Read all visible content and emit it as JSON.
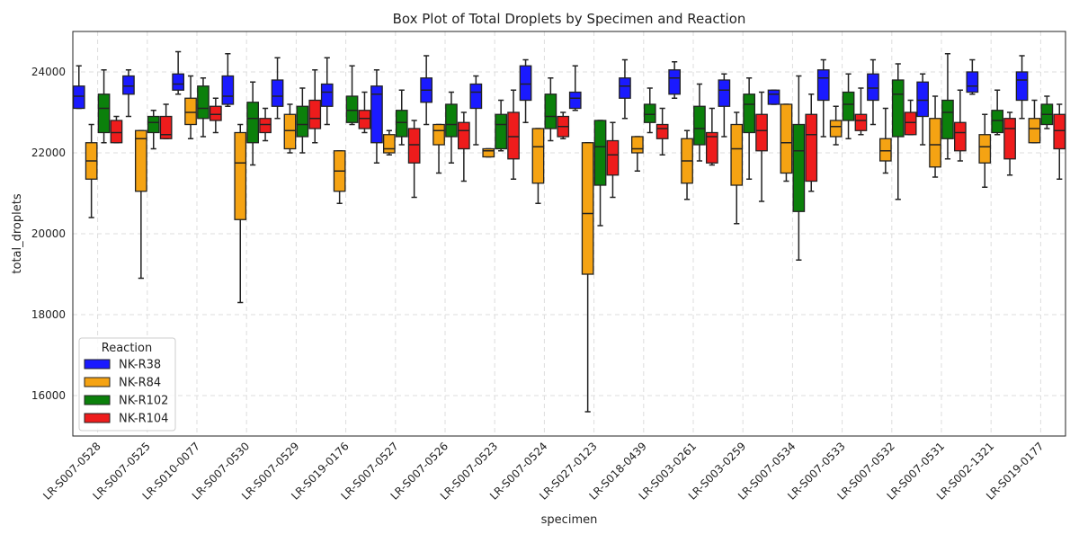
{
  "chart_data": {
    "type": "box",
    "title": "Box Plot of Total Droplets by Specimen and Reaction",
    "xlabel": "specimen",
    "ylabel": "total_droplets",
    "ylim": [
      15000,
      25000
    ],
    "yticks": [
      16000,
      18000,
      20000,
      22000,
      24000
    ],
    "grid": true,
    "legend": {
      "title": "Reaction",
      "position": "lower-left"
    },
    "categories": [
      "LR-S007-0528",
      "LR-S007-0525",
      "LR-S010-0077",
      "LR-S007-0530",
      "LR-S007-0529",
      "LR-S019-0176",
      "LR-S007-0527",
      "LR-S007-0526",
      "LR-S007-0523",
      "LR-S007-0524",
      "LR-S027-0123",
      "LR-S018-0439",
      "LR-S003-0261",
      "LR-S003-0259",
      "LR-S007-0534",
      "LR-S007-0533",
      "LR-S007-0532",
      "LR-S007-0531",
      "LR-S002-1321",
      "LR-S019-0177"
    ],
    "series": [
      {
        "name": "NK-R38",
        "color": "#1a1aff",
        "boxes": [
          {
            "whislo": 23100,
            "q1": 23100,
            "med": 23400,
            "q3": 23650,
            "whishi": 24150
          },
          {
            "whislo": 22900,
            "q1": 23450,
            "med": 23650,
            "q3": 23900,
            "whishi": 24050
          },
          {
            "whislo": 23450,
            "q1": 23550,
            "med": 23700,
            "q3": 23950,
            "whishi": 24500
          },
          {
            "whislo": 23150,
            "q1": 23200,
            "med": 23400,
            "q3": 23900,
            "whishi": 24450
          },
          {
            "whislo": 22850,
            "q1": 23150,
            "med": 23400,
            "q3": 23800,
            "whishi": 24350
          },
          {
            "whislo": 22700,
            "q1": 23150,
            "med": 23500,
            "q3": 23700,
            "whishi": 24350
          },
          {
            "whislo": 21750,
            "q1": 22250,
            "med": 23450,
            "q3": 23650,
            "whishi": 24050
          },
          {
            "whislo": 22700,
            "q1": 23250,
            "med": 23550,
            "q3": 23850,
            "whishi": 24400
          },
          {
            "whislo": 22200,
            "q1": 23100,
            "med": 23500,
            "q3": 23700,
            "whishi": 23900
          },
          {
            "whislo": 22750,
            "q1": 23300,
            "med": 23700,
            "q3": 24150,
            "whishi": 24300
          },
          {
            "whislo": 23050,
            "q1": 23100,
            "med": 23350,
            "q3": 23500,
            "whishi": 24150
          },
          {
            "whislo": 22850,
            "q1": 23350,
            "med": 23650,
            "q3": 23850,
            "whishi": 24300
          },
          {
            "whislo": 23350,
            "q1": 23450,
            "med": 23850,
            "q3": 24050,
            "whishi": 24250
          },
          {
            "whislo": 22400,
            "q1": 23150,
            "med": 23550,
            "q3": 23800,
            "whishi": 23950
          },
          {
            "whislo": 23200,
            "q1": 23200,
            "med": 23450,
            "q3": 23550,
            "whishi": 23550
          },
          {
            "whislo": 22400,
            "q1": 23300,
            "med": 23850,
            "q3": 24050,
            "whishi": 24300
          },
          {
            "whislo": 22700,
            "q1": 23300,
            "med": 23600,
            "q3": 23950,
            "whishi": 24300
          },
          {
            "whislo": 22200,
            "q1": 22900,
            "med": 23300,
            "q3": 23750,
            "whishi": 23950
          },
          {
            "whislo": 23450,
            "q1": 23500,
            "med": 23650,
            "q3": 24000,
            "whishi": 24300
          },
          {
            "whislo": 22850,
            "q1": 23300,
            "med": 23800,
            "q3": 24000,
            "whishi": 24400
          }
        ]
      },
      {
        "name": "NK-R84",
        "color": "#f5a313",
        "boxes": [
          {
            "whislo": 20400,
            "q1": 21350,
            "med": 21800,
            "q3": 22250,
            "whishi": 22700
          },
          {
            "whislo": 18900,
            "q1": 21050,
            "med": 22350,
            "q3": 22550,
            "whishi": 22550
          },
          {
            "whislo": 22350,
            "q1": 22700,
            "med": 23000,
            "q3": 23350,
            "whishi": 23900
          },
          {
            "whislo": 18300,
            "q1": 20350,
            "med": 21750,
            "q3": 22500,
            "whishi": 22700
          },
          {
            "whislo": 22000,
            "q1": 22100,
            "med": 22550,
            "q3": 22950,
            "whishi": 23200
          },
          {
            "whislo": 20750,
            "q1": 21050,
            "med": 21550,
            "q3": 22050,
            "whishi": 22050
          },
          {
            "whislo": 21950,
            "q1": 22000,
            "med": 22100,
            "q3": 22450,
            "whishi": 22550
          },
          {
            "whislo": 21500,
            "q1": 22200,
            "med": 22550,
            "q3": 22700,
            "whishi": 22700
          },
          {
            "whislo": 21900,
            "q1": 21900,
            "med": 22050,
            "q3": 22100,
            "whishi": 22100
          },
          {
            "whislo": 20750,
            "q1": 21250,
            "med": 22150,
            "q3": 22600,
            "whishi": 22600
          },
          {
            "whislo": 15600,
            "q1": 19000,
            "med": 20500,
            "q3": 22250,
            "whishi": 22250
          },
          {
            "whislo": 21550,
            "q1": 22000,
            "med": 22100,
            "q3": 22400,
            "whishi": 22400
          },
          {
            "whislo": 20850,
            "q1": 21250,
            "med": 21800,
            "q3": 22350,
            "whishi": 22550
          },
          {
            "whislo": 20250,
            "q1": 21200,
            "med": 22100,
            "q3": 22700,
            "whishi": 23000
          },
          {
            "whislo": 21300,
            "q1": 21500,
            "med": 22250,
            "q3": 23200,
            "whishi": 23200
          },
          {
            "whislo": 22200,
            "q1": 22400,
            "med": 22650,
            "q3": 22800,
            "whishi": 23150
          },
          {
            "whislo": 21500,
            "q1": 21800,
            "med": 22050,
            "q3": 22350,
            "whishi": 23100
          },
          {
            "whislo": 21400,
            "q1": 21650,
            "med": 22200,
            "q3": 22850,
            "whishi": 23400
          },
          {
            "whislo": 21150,
            "q1": 21750,
            "med": 22150,
            "q3": 22450,
            "whishi": 22950
          },
          {
            "whislo": 22250,
            "q1": 22250,
            "med": 22600,
            "q3": 22850,
            "whishi": 23300
          }
        ]
      },
      {
        "name": "NK-R102",
        "color": "#0b800b",
        "boxes": [
          {
            "whislo": 22250,
            "q1": 22500,
            "med": 23100,
            "q3": 23450,
            "whishi": 24050
          },
          {
            "whislo": 22100,
            "q1": 22500,
            "med": 22750,
            "q3": 22900,
            "whishi": 23050
          },
          {
            "whislo": 22400,
            "q1": 22850,
            "med": 23100,
            "q3": 23650,
            "whishi": 23850
          },
          {
            "whislo": 21700,
            "q1": 22250,
            "med": 22850,
            "q3": 23250,
            "whishi": 23750
          },
          {
            "whislo": 22000,
            "q1": 22400,
            "med": 22700,
            "q3": 23150,
            "whishi": 23600
          },
          {
            "whislo": 22700,
            "q1": 22750,
            "med": 23050,
            "q3": 23400,
            "whishi": 24150
          },
          {
            "whislo": 22200,
            "q1": 22400,
            "med": 22750,
            "q3": 23050,
            "whishi": 23550
          },
          {
            "whislo": 21750,
            "q1": 22400,
            "med": 22700,
            "q3": 23200,
            "whishi": 23500
          },
          {
            "whislo": 22050,
            "q1": 22100,
            "med": 22700,
            "q3": 22950,
            "whishi": 23300
          },
          {
            "whislo": 22300,
            "q1": 22600,
            "med": 22900,
            "q3": 23450,
            "whishi": 23850
          },
          {
            "whislo": 20200,
            "q1": 21200,
            "med": 22150,
            "q3": 22800,
            "whishi": 22800
          },
          {
            "whislo": 22500,
            "q1": 22750,
            "med": 22950,
            "q3": 23200,
            "whishi": 23600
          },
          {
            "whislo": 21800,
            "q1": 22200,
            "med": 22600,
            "q3": 23150,
            "whishi": 23700
          },
          {
            "whislo": 21350,
            "q1": 22500,
            "med": 23200,
            "q3": 23450,
            "whishi": 23850
          },
          {
            "whislo": 19350,
            "q1": 20550,
            "med": 22050,
            "q3": 22700,
            "whishi": 23900
          },
          {
            "whislo": 22350,
            "q1": 22800,
            "med": 23200,
            "q3": 23500,
            "whishi": 23950
          },
          {
            "whislo": 20850,
            "q1": 22400,
            "med": 23450,
            "q3": 23800,
            "whishi": 24200
          },
          {
            "whislo": 21850,
            "q1": 22350,
            "med": 23000,
            "q3": 23300,
            "whishi": 24450
          },
          {
            "whislo": 22450,
            "q1": 22500,
            "med": 22800,
            "q3": 23050,
            "whishi": 23550
          },
          {
            "whislo": 22600,
            "q1": 22700,
            "med": 22950,
            "q3": 23200,
            "whishi": 23400
          }
        ]
      },
      {
        "name": "NK-R104",
        "color": "#ee1c1c",
        "boxes": [
          {
            "whislo": 22250,
            "q1": 22250,
            "med": 22500,
            "q3": 22800,
            "whishi": 22900
          },
          {
            "whislo": 22350,
            "q1": 22350,
            "med": 22450,
            "q3": 22900,
            "whishi": 23200
          },
          {
            "whislo": 22500,
            "q1": 22800,
            "med": 22950,
            "q3": 23150,
            "whishi": 23350
          },
          {
            "whislo": 22300,
            "q1": 22500,
            "med": 22700,
            "q3": 22850,
            "whishi": 23100
          },
          {
            "whislo": 22250,
            "q1": 22600,
            "med": 22850,
            "q3": 23300,
            "whishi": 24050
          },
          {
            "whislo": 22500,
            "q1": 22600,
            "med": 22850,
            "q3": 23050,
            "whishi": 23500
          },
          {
            "whislo": 20900,
            "q1": 21750,
            "med": 22200,
            "q3": 22600,
            "whishi": 22800
          },
          {
            "whislo": 21300,
            "q1": 22100,
            "med": 22550,
            "q3": 22750,
            "whishi": 23000
          },
          {
            "whislo": 21350,
            "q1": 21850,
            "med": 22400,
            "q3": 23000,
            "whishi": 23550
          },
          {
            "whislo": 22350,
            "q1": 22400,
            "med": 22650,
            "q3": 22900,
            "whishi": 23000
          },
          {
            "whislo": 20900,
            "q1": 21450,
            "med": 21950,
            "q3": 22300,
            "whishi": 22750
          },
          {
            "whislo": 21950,
            "q1": 22350,
            "med": 22600,
            "q3": 22700,
            "whishi": 23100
          },
          {
            "whislo": 21700,
            "q1": 21750,
            "med": 22400,
            "q3": 22500,
            "whishi": 23100
          },
          {
            "whislo": 20800,
            "q1": 22050,
            "med": 22550,
            "q3": 22950,
            "whishi": 23500
          },
          {
            "whislo": 21050,
            "q1": 21300,
            "med": 22450,
            "q3": 22950,
            "whishi": 23450
          },
          {
            "whislo": 22450,
            "q1": 22550,
            "med": 22800,
            "q3": 22950,
            "whishi": 23600
          },
          {
            "whislo": 22450,
            "q1": 22450,
            "med": 22750,
            "q3": 23000,
            "whishi": 23300
          },
          {
            "whislo": 21800,
            "q1": 22050,
            "med": 22500,
            "q3": 22750,
            "whishi": 23550
          },
          {
            "whislo": 21450,
            "q1": 21850,
            "med": 22600,
            "q3": 22850,
            "whishi": 23000
          },
          {
            "whislo": 21350,
            "q1": 22100,
            "med": 22550,
            "q3": 22950,
            "whishi": 23200
          }
        ]
      }
    ]
  }
}
